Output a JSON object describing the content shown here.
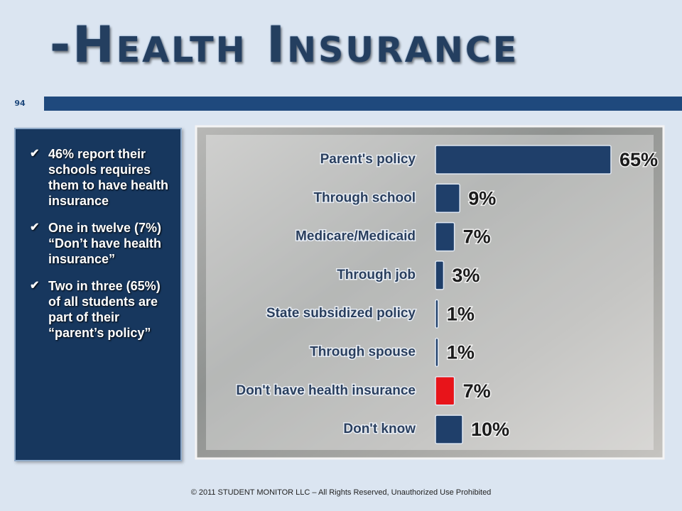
{
  "title": "-Health Insurance",
  "page_number": "94",
  "bullets": [
    "46% report their schools requires them to have health insurance",
    "One in twelve (7%) “Don’t have health insurance”",
    "Two in three (65%) of all students are part of their “parent’s policy”"
  ],
  "footer": "© 2011 STUDENT MONITOR LLC – All Rights Reserved, Unauthorized Use Prohibited",
  "chart_data": {
    "type": "bar",
    "orientation": "horizontal",
    "categories": [
      "Parent's policy",
      "Through school",
      "Medicare/Medicaid",
      "Through job",
      "State subsidized policy",
      "Through spouse",
      "Don't have health insurance",
      "Don't know"
    ],
    "values": [
      65,
      9,
      7,
      3,
      1,
      1,
      7,
      10
    ],
    "value_labels": [
      "65%",
      "9%",
      "7%",
      "3%",
      "1%",
      "1%",
      "7%",
      "10%"
    ],
    "colors": [
      "#1f3f6a",
      "#1f3f6a",
      "#1f3f6a",
      "#1f3f6a",
      "#1f3f6a",
      "#1f3f6a",
      "#e8141a",
      "#1f3f6a"
    ]
  }
}
